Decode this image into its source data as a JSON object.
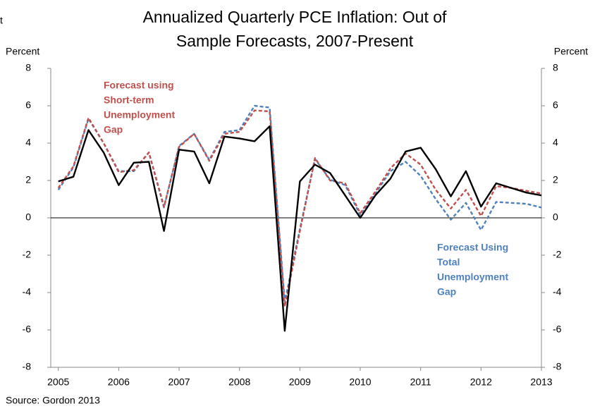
{
  "chart_data": {
    "type": "line",
    "title": [
      "Annualized Quarterly PCE Inflation: Out of",
      "Sample Forecasts, 2007-Present"
    ],
    "corner_text": "t",
    "ylabel": "Percent",
    "y2label": "Percent",
    "source": "Source: Gordon 2013",
    "x": [
      2005,
      2005.25,
      2005.5,
      2005.75,
      2006,
      2006.25,
      2006.5,
      2006.75,
      2007,
      2007.25,
      2007.5,
      2007.75,
      2008,
      2008.25,
      2008.5,
      2008.75,
      2009,
      2009.25,
      2009.5,
      2009.75,
      2010,
      2010.25,
      2010.5,
      2010.75,
      2011,
      2011.25,
      2011.5,
      2011.75,
      2012,
      2012.25,
      2012.5,
      2012.75,
      2013
    ],
    "xlim": [
      2004.875,
      2013
    ],
    "xticks": [
      2005,
      2006,
      2007,
      2008,
      2009,
      2010,
      2011,
      2012,
      2013
    ],
    "ylim": [
      -8,
      8
    ],
    "yticks": [
      -8,
      -6,
      -4,
      -2,
      0,
      2,
      4,
      6,
      8
    ],
    "y2lim": [
      -8,
      8
    ],
    "y2ticks": [
      -8,
      -6,
      -4,
      -2,
      0,
      2,
      4,
      6,
      8
    ],
    "series": [
      {
        "color": "#000000",
        "dash": false,
        "values": [
          1.95,
          2.2,
          4.7,
          3.5,
          1.75,
          2.95,
          3.0,
          -0.7,
          3.65,
          3.55,
          1.85,
          4.35,
          4.25,
          4.1,
          4.9,
          -6.05,
          1.95,
          2.85,
          2.4,
          1.2,
          0.0,
          1.2,
          2.1,
          3.55,
          3.75,
          2.6,
          1.15,
          2.5,
          0.6,
          1.85,
          1.6,
          1.35,
          1.2
        ]
      },
      {
        "color": "#c0504d",
        "dash": true,
        "values": [
          1.6,
          2.75,
          5.35,
          4.0,
          2.45,
          2.55,
          3.5,
          0.6,
          3.8,
          4.5,
          3.05,
          4.5,
          4.6,
          5.75,
          5.7,
          -4.75,
          -0.7,
          3.2,
          2.0,
          1.85,
          0.25,
          1.4,
          2.65,
          3.45,
          2.85,
          1.5,
          0.5,
          1.5,
          0.1,
          1.7,
          1.6,
          1.45,
          1.3
        ]
      },
      {
        "color": "#4f81bd",
        "dash": true,
        "values": [
          1.5,
          2.7,
          5.3,
          4.0,
          2.5,
          2.5,
          3.5,
          0.55,
          3.85,
          4.5,
          3.1,
          4.6,
          4.7,
          6.0,
          5.9,
          -4.5,
          -0.6,
          3.15,
          2.05,
          1.75,
          0.15,
          1.3,
          2.5,
          3.0,
          2.25,
          1.0,
          -0.1,
          0.8,
          -0.65,
          0.85,
          0.8,
          0.75,
          0.55
        ]
      }
    ],
    "annotations": [
      {
        "color": "#c0504d",
        "lines": [
          "Forecast using",
          "Short-term",
          "Unemployment",
          "Gap"
        ]
      },
      {
        "color": "#4f81bd",
        "lines": [
          "Forecast Using",
          "Total",
          "Unemployment",
          "Gap"
        ]
      }
    ]
  }
}
